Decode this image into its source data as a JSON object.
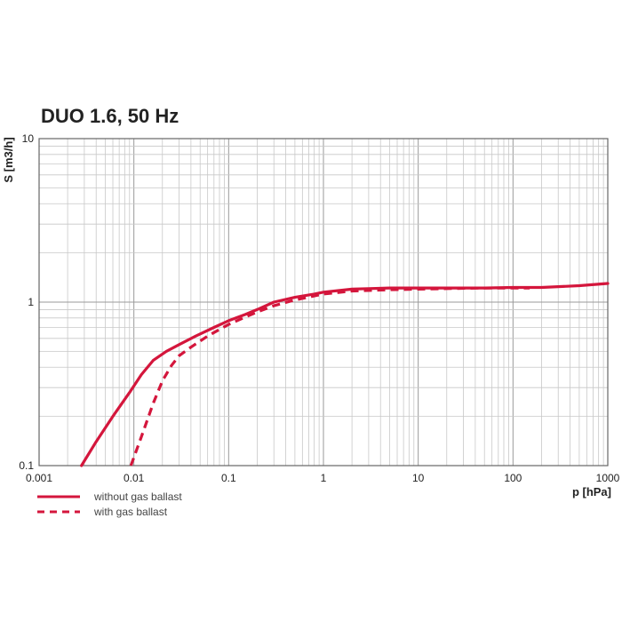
{
  "chart_data": {
    "type": "line",
    "title": "DUO 1.6, 50 Hz",
    "xlabel": "p [hPa]",
    "ylabel": "S [m3/h]",
    "xscale": "log",
    "yscale": "log",
    "xlim": [
      0.001,
      1000
    ],
    "ylim": [
      0.1,
      10
    ],
    "xticks": [
      {
        "value": 0.001,
        "label": "0.001"
      },
      {
        "value": 0.01,
        "label": "0.01"
      },
      {
        "value": 0.1,
        "label": "0.1"
      },
      {
        "value": 1,
        "label": "1"
      },
      {
        "value": 10,
        "label": "10"
      },
      {
        "value": 100,
        "label": "100"
      },
      {
        "value": 1000,
        "label": "1000"
      }
    ],
    "yticks": [
      {
        "value": 0.1,
        "label": "0.1"
      },
      {
        "value": 1,
        "label": "1"
      },
      {
        "value": 10,
        "label": "10"
      }
    ],
    "grid": true,
    "legend_position": "bottom-left",
    "series": [
      {
        "name": "without gas ballast",
        "style": "solid",
        "color": "#d4163c",
        "x": [
          0.0028,
          0.004,
          0.006,
          0.009,
          0.012,
          0.016,
          0.022,
          0.03,
          0.045,
          0.07,
          0.1,
          0.15,
          0.2,
          0.3,
          0.5,
          0.8,
          1,
          2,
          3,
          5,
          10,
          20,
          50,
          100,
          200,
          500,
          1000
        ],
        "y": [
          0.1,
          0.14,
          0.2,
          0.28,
          0.36,
          0.44,
          0.5,
          0.55,
          0.62,
          0.7,
          0.77,
          0.84,
          0.9,
          1.0,
          1.07,
          1.12,
          1.15,
          1.2,
          1.21,
          1.22,
          1.22,
          1.22,
          1.22,
          1.23,
          1.23,
          1.26,
          1.3
        ]
      },
      {
        "name": "with gas ballast",
        "style": "dashed",
        "color": "#d4163c",
        "x": [
          0.0093,
          0.012,
          0.016,
          0.02,
          0.025,
          0.03,
          0.04,
          0.06,
          0.1,
          0.15,
          0.2,
          0.3,
          0.5,
          1,
          2,
          5,
          10,
          20,
          50,
          100,
          150
        ],
        "y": [
          0.1,
          0.15,
          0.24,
          0.33,
          0.41,
          0.47,
          0.53,
          0.62,
          0.73,
          0.81,
          0.87,
          0.95,
          1.03,
          1.12,
          1.17,
          1.19,
          1.2,
          1.21,
          1.22,
          1.22,
          1.22
        ]
      }
    ]
  }
}
